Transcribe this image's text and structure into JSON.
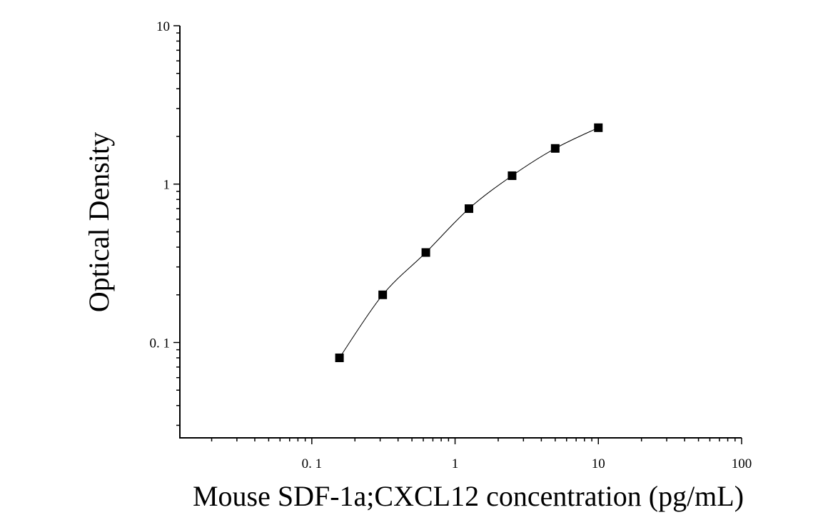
{
  "chart_data": {
    "type": "scatter",
    "title": "",
    "xlabel": "Mouse SDF-1a;CXCL12 concentration (pg/mL)",
    "ylabel": "Optical Density",
    "x_scale": "log",
    "y_scale": "log",
    "xlim": [
      0.012,
      100
    ],
    "ylim": [
      0.025,
      10
    ],
    "x_ticks": [
      {
        "value": 0.1,
        "label": "0. 1"
      },
      {
        "value": 1,
        "label": "1"
      },
      {
        "value": 10,
        "label": "10"
      },
      {
        "value": 100,
        "label": "100"
      }
    ],
    "y_ticks": [
      {
        "value": 0.1,
        "label": "0. 1"
      },
      {
        "value": 1,
        "label": "1"
      },
      {
        "value": 10,
        "label": "10"
      }
    ],
    "grid": false,
    "legend": "none",
    "series": [
      {
        "marker": "square",
        "color": "#000000",
        "fit_line": true,
        "points": [
          {
            "x": 0.156,
            "y": 0.08
          },
          {
            "x": 0.3125,
            "y": 0.2
          },
          {
            "x": 0.625,
            "y": 0.37
          },
          {
            "x": 1.25,
            "y": 0.7
          },
          {
            "x": 2.5,
            "y": 1.13
          },
          {
            "x": 5,
            "y": 1.68
          },
          {
            "x": 10,
            "y": 2.27
          }
        ]
      }
    ]
  }
}
